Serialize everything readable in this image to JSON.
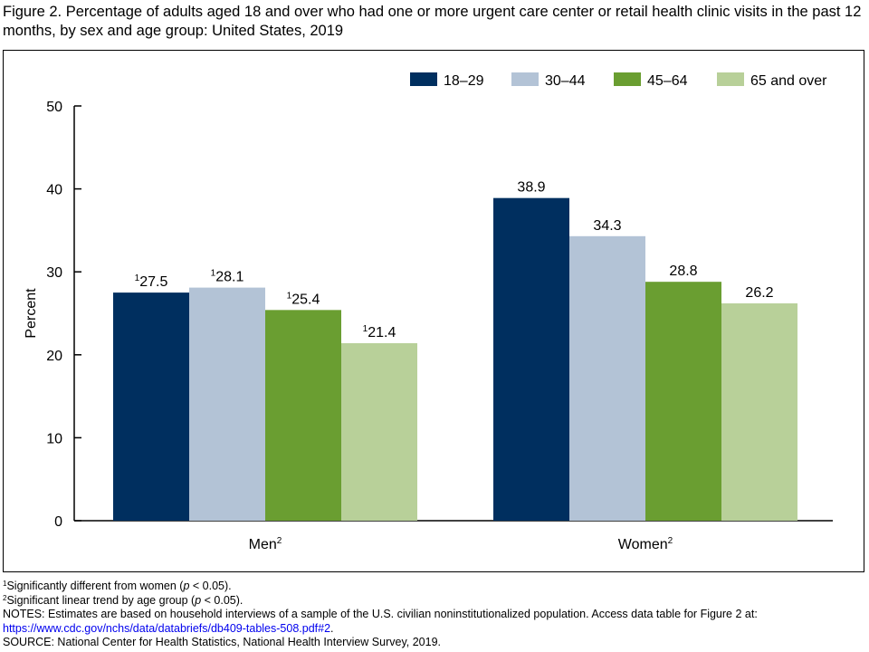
{
  "title": "Figure 2. Percentage of adults aged 18 and over who had one or more urgent care center or retail health clinic visits in the past 12 months, by sex and age group: United States, 2019",
  "chart_data": {
    "type": "bar",
    "title": "Figure 2. Percentage of adults aged 18 and over who had one or more urgent care center or retail health clinic visits in the past 12 months, by sex and age group: United States, 2019",
    "categories": [
      {
        "label": "Men",
        "sup": "2"
      },
      {
        "label": "Women",
        "sup": "2"
      }
    ],
    "series": [
      {
        "name": "18–29",
        "color": "#002f5f",
        "values": [
          27.5,
          38.9
        ],
        "markers": [
          "1",
          ""
        ]
      },
      {
        "name": "30–44",
        "color": "#b3c3d6",
        "values": [
          28.1,
          34.3
        ],
        "markers": [
          "1",
          ""
        ]
      },
      {
        "name": "45–64",
        "color": "#6a9e31",
        "values": [
          25.4,
          28.8
        ],
        "markers": [
          "1",
          ""
        ]
      },
      {
        "name": "65 and over",
        "color": "#b8d099",
        "values": [
          21.4,
          26.2
        ],
        "markers": [
          "1",
          ""
        ]
      }
    ],
    "value_labels": [
      [
        "27.5",
        "38.9"
      ],
      [
        "28.1",
        "34.3"
      ],
      [
        "25.4",
        "28.8"
      ],
      [
        "21.4",
        "26.2"
      ]
    ],
    "xlabel": "",
    "ylabel": "Percent",
    "ylim": [
      0,
      50
    ],
    "yticks": [
      "0",
      "10",
      "20",
      "30",
      "40",
      "50"
    ],
    "grid": false,
    "legend": "top-right"
  },
  "footnotes": {
    "f1": {
      "marker": "1",
      "before": "Significantly different from women (",
      "p": "p",
      "after": " < 0.05)."
    },
    "f2": {
      "marker": "2",
      "before": "Significant linear trend by age group (",
      "p": "p",
      "after": " < 0.05)."
    },
    "notes": "NOTES: Estimates are based on household interviews of a sample of the U.S. civilian noninstitutionalized population. Access data table for Figure 2 at:",
    "link": "https://www.cdc.gov/nchs/data/databriefs/db409-tables-508.pdf#2",
    "link_suffix": ".",
    "source": "SOURCE: National Center for Health Statistics, National Health Interview Survey, 2019."
  }
}
